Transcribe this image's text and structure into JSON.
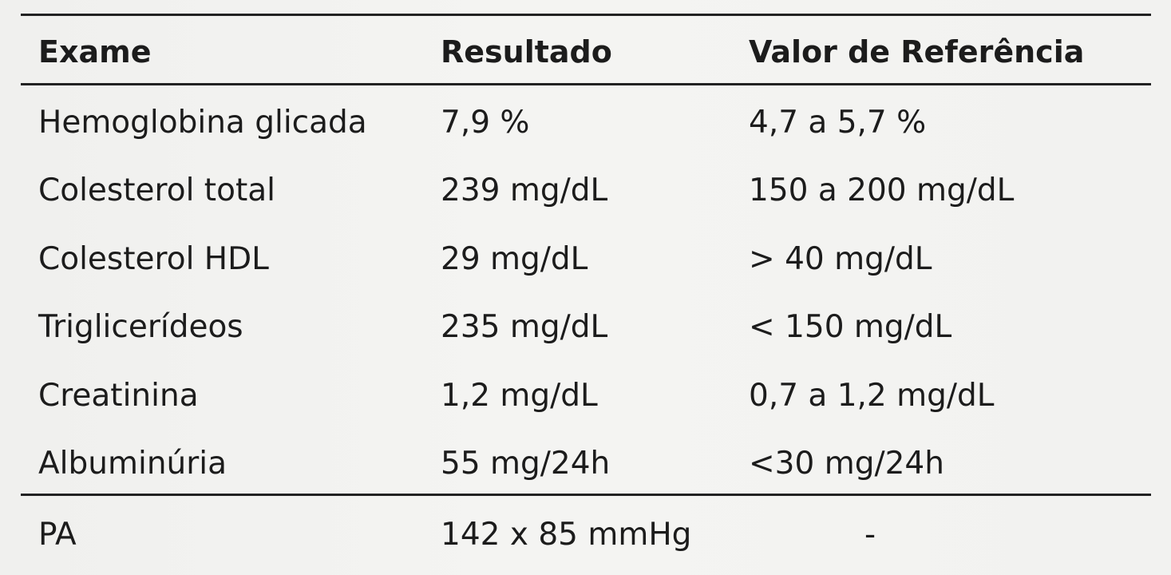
{
  "table": {
    "headers": {
      "exam": "Exame",
      "result": "Resultado",
      "reference": "Valor de Referência"
    },
    "rows": [
      {
        "exam": "Hemoglobina glicada",
        "result": "7,9 %",
        "reference": "4,7 a 5,7 %"
      },
      {
        "exam": "Colesterol total",
        "result": "239 mg/dL",
        "reference": "150 a 200 mg/dL"
      },
      {
        "exam": "Colesterol HDL",
        "result": "29 mg/dL",
        "reference": "> 40 mg/dL"
      },
      {
        "exam": "Triglicerídeos",
        "result": "235 mg/dL",
        "reference": "< 150 mg/dL"
      },
      {
        "exam": "Creatinina",
        "result": "1,2 mg/dL",
        "reference": "0,7 a 1,2 mg/dL"
      },
      {
        "exam": "Albuminúria",
        "result": "55 mg/24h",
        "reference": "<30 mg/24h"
      }
    ],
    "footer_row": {
      "exam": "PA",
      "result": "142 x 85 mmHg",
      "reference": "-"
    }
  }
}
